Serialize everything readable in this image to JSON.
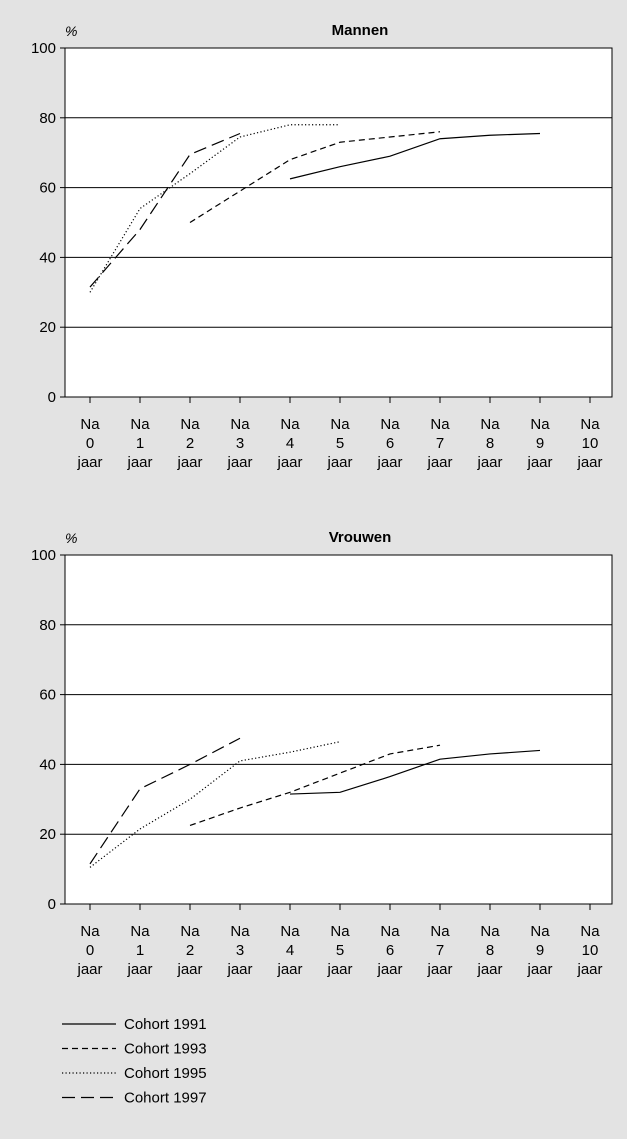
{
  "chart_data": [
    {
      "type": "line",
      "title": "Mannen",
      "ylabel": "%",
      "xlabel": "",
      "ylim": [
        0,
        100
      ],
      "yticks": [
        0,
        20,
        40,
        60,
        80,
        100
      ],
      "grid": true,
      "categories": [
        "Na\n0\njaar",
        "Na\n1\njaar",
        "Na\n2\njaar",
        "Na\n3\njaar",
        "Na\n4\njaar",
        "Na\n5\njaar",
        "Na\n6\njaar",
        "Na\n7\njaar",
        "Na\n8\njaar",
        "Na\n9\njaar",
        "Na\n10\njaar"
      ],
      "series": [
        {
          "name": "Cohort 1991",
          "style": "solid",
          "values": [
            null,
            null,
            null,
            null,
            62.5,
            66,
            69,
            74,
            75,
            75.5,
            null
          ]
        },
        {
          "name": "Cohort 1993",
          "style": "dashed",
          "values": [
            null,
            null,
            50,
            59,
            68,
            73,
            74.5,
            76,
            null,
            null,
            null
          ]
        },
        {
          "name": "Cohort 1995",
          "style": "dotted",
          "values": [
            30,
            54,
            64,
            74.5,
            78,
            78,
            null,
            null,
            null,
            null,
            null
          ]
        },
        {
          "name": "Cohort 1997",
          "style": "longdash",
          "values": [
            31.5,
            48,
            69.5,
            75.5,
            null,
            null,
            null,
            null,
            null,
            null,
            null
          ]
        }
      ]
    },
    {
      "type": "line",
      "title": "Vrouwen",
      "ylabel": "%",
      "xlabel": "",
      "ylim": [
        0,
        100
      ],
      "yticks": [
        0,
        20,
        40,
        60,
        80,
        100
      ],
      "grid": true,
      "categories": [
        "Na\n0\njaar",
        "Na\n1\njaar",
        "Na\n2\njaar",
        "Na\n3\njaar",
        "Na\n4\njaar",
        "Na\n5\njaar",
        "Na\n6\njaar",
        "Na\n7\njaar",
        "Na\n8\njaar",
        "Na\n9\njaar",
        "Na\n10\njaar"
      ],
      "series": [
        {
          "name": "Cohort 1991",
          "style": "solid",
          "values": [
            null,
            null,
            null,
            null,
            31.5,
            32,
            36.5,
            41.5,
            43,
            44,
            null
          ]
        },
        {
          "name": "Cohort 1993",
          "style": "dashed",
          "values": [
            null,
            null,
            22.5,
            27.5,
            32,
            37.5,
            43,
            45.5,
            null,
            null,
            null
          ]
        },
        {
          "name": "Cohort 1995",
          "style": "dotted",
          "values": [
            10.5,
            21.5,
            30,
            41,
            43.5,
            46.5,
            null,
            null,
            null,
            null,
            null
          ]
        },
        {
          "name": "Cohort 1997",
          "style": "longdash",
          "values": [
            11.5,
            33,
            40,
            47.5,
            null,
            null,
            null,
            null,
            null,
            null,
            null
          ]
        }
      ]
    }
  ],
  "legend": {
    "placement": "bottom-left",
    "items": [
      {
        "label": "Cohort 1991",
        "style": "solid"
      },
      {
        "label": "Cohort 1993",
        "style": "dashed"
      },
      {
        "label": "Cohort 1995",
        "style": "dotted"
      },
      {
        "label": "Cohort 1997",
        "style": "longdash"
      }
    ]
  }
}
